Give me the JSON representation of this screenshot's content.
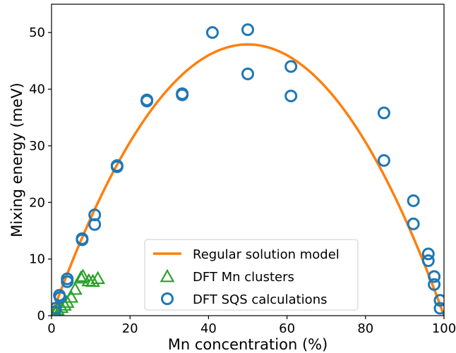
{
  "chart_data": {
    "type": "scatter",
    "xlabel": "Mn concentration (%)",
    "ylabel": "Mixing energy (meV)",
    "xlim": [
      0,
      100
    ],
    "ylim": [
      0,
      55
    ],
    "xticks": [
      0,
      20,
      40,
      60,
      80,
      100
    ],
    "yticks": [
      0,
      10,
      20,
      30,
      40,
      50
    ],
    "grid": false,
    "legend_position": "bottom-center",
    "series": [
      {
        "name": "Regular solution model",
        "kind": "line",
        "color": "#ff7f0e",
        "model": "y = 4 * 47.9 * (x/100) * (1 - x/100)",
        "peak": 47.9
      },
      {
        "name": "DFT Mn clusters",
        "kind": "scatter",
        "marker": "triangle",
        "color": "#2ca02c",
        "points": [
          [
            0.8,
            0.6
          ],
          [
            1.5,
            1.0
          ],
          [
            2.5,
            1.4
          ],
          [
            3.3,
            1.8
          ],
          [
            4.0,
            2.3
          ],
          [
            5.0,
            3.2
          ],
          [
            6.0,
            4.6
          ],
          [
            7.5,
            6.6
          ],
          [
            8.0,
            6.9
          ],
          [
            9.5,
            6.1
          ],
          [
            10.5,
            6.0
          ],
          [
            11.8,
            6.5
          ]
        ]
      },
      {
        "name": "DFT SQS calculations",
        "kind": "scatter",
        "marker": "circle",
        "color": "#1f77b4",
        "points": [
          [
            0.8,
            0.7
          ],
          [
            1.0,
            1.3
          ],
          [
            2.0,
            3.6
          ],
          [
            2.2,
            3.2
          ],
          [
            4.0,
            6.5
          ],
          [
            4.0,
            6.0
          ],
          [
            7.8,
            13.6
          ],
          [
            7.8,
            13.4
          ],
          [
            11.0,
            17.8
          ],
          [
            11.0,
            16.1
          ],
          [
            16.7,
            26.5
          ],
          [
            16.7,
            26.3
          ],
          [
            24.3,
            38.1
          ],
          [
            24.3,
            37.9
          ],
          [
            33.3,
            39.2
          ],
          [
            33.3,
            39.0
          ],
          [
            41.0,
            50.0
          ],
          [
            50.0,
            50.5
          ],
          [
            50.0,
            42.7
          ],
          [
            61.0,
            44.0
          ],
          [
            61.0,
            38.8
          ],
          [
            84.7,
            35.8
          ],
          [
            84.7,
            27.4
          ],
          [
            92.2,
            20.3
          ],
          [
            92.2,
            16.2
          ],
          [
            96.0,
            10.9
          ],
          [
            96.0,
            9.7
          ],
          [
            97.5,
            6.9
          ],
          [
            97.5,
            5.5
          ],
          [
            99.0,
            2.7
          ],
          [
            99.0,
            1.3
          ]
        ]
      }
    ]
  }
}
